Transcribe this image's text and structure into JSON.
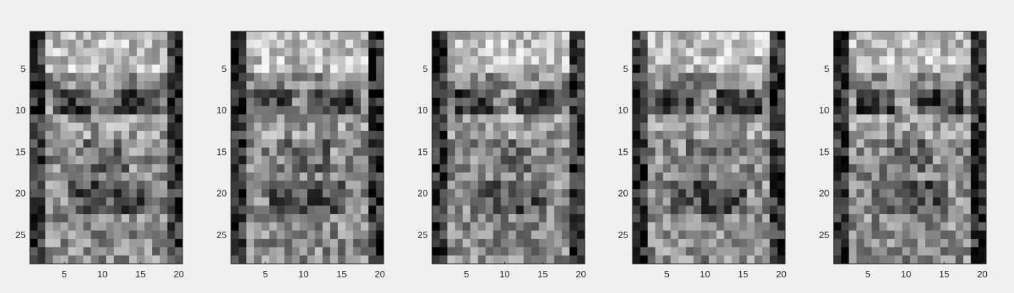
{
  "chart_data": [
    {
      "type": "heatmap",
      "colormap": "gray",
      "rows": 28,
      "cols": 20,
      "xlim": [
        0.5,
        20.5
      ],
      "ylim": [
        0.5,
        28.5
      ],
      "xticks": [
        "5",
        "10",
        "15",
        "20"
      ],
      "yticks": [
        "5",
        "10",
        "15",
        "20",
        "25"
      ],
      "grid": false,
      "seed": 11
    },
    {
      "type": "heatmap",
      "colormap": "gray",
      "rows": 28,
      "cols": 20,
      "xlim": [
        0.5,
        20.5
      ],
      "ylim": [
        0.5,
        28.5
      ],
      "xticks": [
        "5",
        "10",
        "15",
        "20"
      ],
      "yticks": [
        "5",
        "10",
        "15",
        "20",
        "25"
      ],
      "grid": false,
      "seed": 23
    },
    {
      "type": "heatmap",
      "colormap": "gray",
      "rows": 28,
      "cols": 20,
      "xlim": [
        0.5,
        20.5
      ],
      "ylim": [
        0.5,
        28.5
      ],
      "xticks": [
        "5",
        "10",
        "15",
        "20"
      ],
      "yticks": [
        "5",
        "10",
        "15",
        "20",
        "25"
      ],
      "grid": false,
      "seed": 37
    },
    {
      "type": "heatmap",
      "colormap": "gray",
      "rows": 28,
      "cols": 20,
      "xlim": [
        0.5,
        20.5
      ],
      "ylim": [
        0.5,
        28.5
      ],
      "xticks": [
        "5",
        "10",
        "15",
        "20"
      ],
      "yticks": [
        "5",
        "10",
        "15",
        "20",
        "25"
      ],
      "grid": false,
      "seed": 41
    },
    {
      "type": "heatmap",
      "colormap": "gray",
      "rows": 28,
      "cols": 20,
      "xlim": [
        0.5,
        20.5
      ],
      "ylim": [
        0.5,
        28.5
      ],
      "xticks": [
        "5",
        "10",
        "15",
        "20"
      ],
      "yticks": [
        "5",
        "10",
        "15",
        "20",
        "25"
      ],
      "grid": false,
      "seed": 53
    }
  ]
}
